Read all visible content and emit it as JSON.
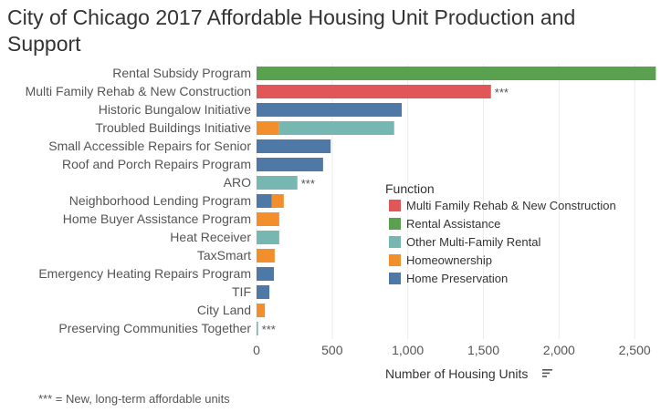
{
  "chart_data": {
    "type": "bar",
    "orientation": "horizontal",
    "stacked": true,
    "title": "City of Chicago 2017 Affordable Housing Unit Production and Support",
    "xlabel": "Number of Housing Units",
    "ylabel": "",
    "xlim": [
      0,
      2650
    ],
    "x_ticks": [
      0,
      500,
      1000,
      1500,
      2000,
      2500
    ],
    "x_tick_labels": [
      "0",
      "500",
      "1,000",
      "1,500",
      "2,000",
      "2,500"
    ],
    "grid": true,
    "legend_title": "Function",
    "legend_position": "center-right",
    "categories": [
      "Rental Subsidy Program",
      "Multi Family Rehab & New Construction",
      "Historic Bungalow Initiative",
      "Troubled Buildings Initiative",
      "Small Accessible Repairs for Senior",
      "Roof and Porch Repairs Program",
      "ARO",
      "Neighborhood Lending Program",
      "Home Buyer Assistance Program",
      "Heat Receiver",
      "TaxSmart",
      "Emergency Heating Repairs Program",
      "TIF",
      "City Land",
      "Preserving Communities Together"
    ],
    "series": [
      {
        "name": "Multi Family Rehab & New Construction",
        "color": "#e15759",
        "values": [
          0,
          1550,
          0,
          0,
          0,
          0,
          0,
          0,
          0,
          0,
          0,
          0,
          0,
          0,
          0
        ]
      },
      {
        "name": "Rental Assistance",
        "color": "#59a14f",
        "values": [
          2640,
          0,
          0,
          0,
          0,
          0,
          0,
          0,
          0,
          0,
          0,
          0,
          0,
          0,
          0
        ]
      },
      {
        "name": "Other Multi-Family Rental",
        "color": "#76b7b2",
        "values": [
          0,
          0,
          0,
          760,
          0,
          0,
          270,
          0,
          0,
          150,
          0,
          0,
          0,
          0,
          10
        ]
      },
      {
        "name": "Homeownership",
        "color": "#f28e2b",
        "values": [
          0,
          0,
          0,
          150,
          0,
          0,
          0,
          80,
          150,
          0,
          120,
          0,
          0,
          55,
          0
        ]
      },
      {
        "name": "Home Preservation",
        "color": "#4e79a7",
        "values": [
          0,
          0,
          960,
          0,
          490,
          440,
          0,
          100,
          0,
          0,
          0,
          115,
          85,
          0,
          0
        ]
      }
    ],
    "stack_order": [
      "Home Preservation",
      "Homeownership",
      "Other Multi-Family Rental",
      "Multi Family Rehab & New Construction",
      "Rental Assistance"
    ],
    "legend_order": [
      "Multi Family Rehab & New Construction",
      "Rental Assistance",
      "Other Multi-Family Rental",
      "Homeownership",
      "Home Preservation"
    ],
    "annotations": [
      {
        "category": "Multi Family Rehab & New Construction",
        "text": "***"
      },
      {
        "category": "ARO",
        "text": "***"
      },
      {
        "category": "Preserving Communities Together",
        "text": "***"
      }
    ]
  },
  "footnote": "*** = New, long-term affordable units"
}
